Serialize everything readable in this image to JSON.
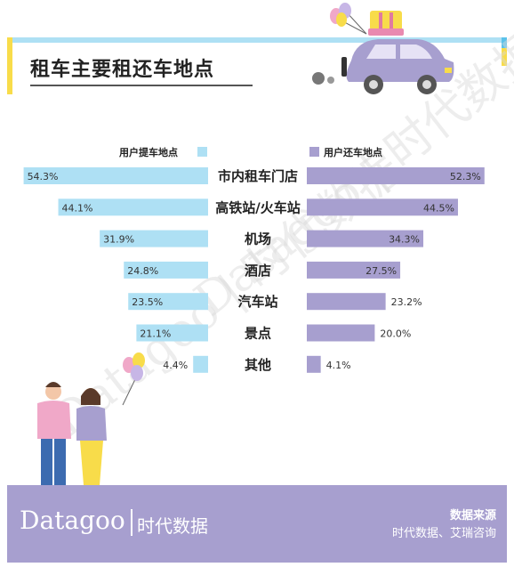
{
  "title": "租车主要租还车地点",
  "legend": {
    "left": "用户提车地点",
    "right": "用户还车地点"
  },
  "watermark": "Datagoo | 时代数据",
  "footer": {
    "brand": "Datagoo",
    "brand_cn": "时代数据",
    "source_title": "数据来源",
    "source_text": "时代数据、艾瑞咨询"
  },
  "colors": {
    "pickup": "#aee0f4",
    "return": "#a79fcf",
    "accent_yellow": "#f8dc4a"
  },
  "chart_data": {
    "type": "bar",
    "categories": [
      "市内租车门店",
      "高铁站/火车站",
      "机场",
      "酒店",
      "汽车站",
      "景点",
      "其他"
    ],
    "series": [
      {
        "name": "用户提车地点",
        "values": [
          54.3,
          44.1,
          31.9,
          24.8,
          23.5,
          21.1,
          4.4
        ],
        "labels": [
          "54.3%",
          "44.1%",
          "31.9%",
          "24.8%",
          "23.5%",
          "21.1%",
          "4.4%"
        ]
      },
      {
        "name": "用户还车地点",
        "values": [
          52.3,
          44.5,
          34.3,
          27.5,
          23.2,
          20.0,
          4.1
        ],
        "labels": [
          "52.3%",
          "44.5%",
          "34.3%",
          "27.5%",
          "23.2%",
          "20.0%",
          "4.1%"
        ]
      }
    ]
  }
}
